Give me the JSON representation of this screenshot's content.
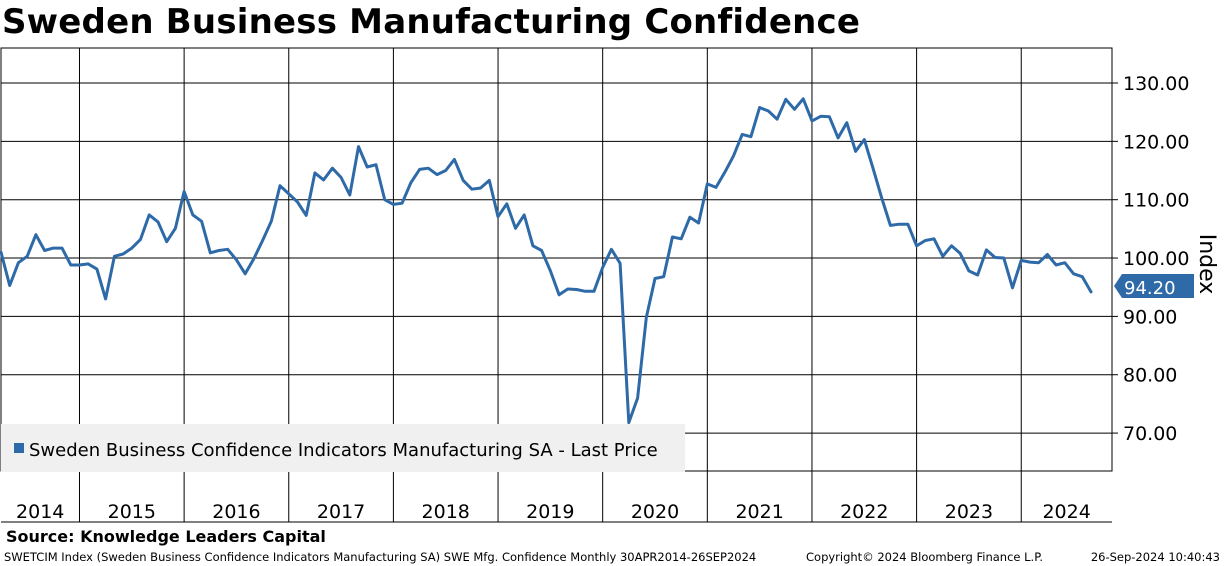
{
  "title": "Sweden Business Manufacturing Confidence",
  "source": "Source: Knowledge Leaders Capital",
  "footer": {
    "description": "SWETCIM Index (Sweden Business Confidence Indicators Manufacturing SA) SWE Mfg. Confidence  Monthly 30APR2014-26SEP2024",
    "copyright": "Copyright© 2024 Bloomberg Finance L.P.",
    "timestamp": "26-Sep-2024 10:40:43"
  },
  "colors": {
    "line": "#2e6aa8",
    "grid": "#000000",
    "legend_bg": "#f0f0f0"
  },
  "chart_data": {
    "type": "line",
    "title": "Sweden Business Manufacturing Confidence",
    "ylabel": "Index",
    "ylim": [
      63.5,
      136
    ],
    "yticks": [
      70,
      80,
      90,
      100,
      110,
      120,
      130
    ],
    "ytick_labels": [
      "70.00",
      "80.00",
      "90.00",
      "100.00",
      "110.00",
      "120.00",
      "130.00"
    ],
    "years": [
      "2014",
      "2015",
      "2016",
      "2017",
      "2018",
      "2019",
      "2020",
      "2021",
      "2022",
      "2023",
      "2024"
    ],
    "start": {
      "year": 2014,
      "month": 4
    },
    "legend": "Sweden Business Confidence Indicators Manufacturing SA - Last Price",
    "last_value_label": "94.20",
    "series": [
      {
        "name": "Sweden Business Confidence Indicators Manufacturing SA - Last Price",
        "values": [
          101.0,
          95.3,
          99.2,
          100.3,
          104.0,
          101.3,
          101.7,
          101.7,
          98.8,
          98.8,
          99.0,
          98.1,
          93.0,
          100.3,
          100.7,
          101.7,
          103.2,
          107.4,
          106.2,
          102.8,
          105.1,
          111.4,
          107.4,
          106.3,
          100.9,
          101.3,
          101.5,
          99.7,
          97.3,
          99.9,
          103.0,
          106.3,
          112.4,
          111.0,
          109.6,
          107.3,
          114.6,
          113.4,
          115.4,
          113.8,
          110.8,
          119.1,
          115.6,
          116.0,
          110.0,
          109.2,
          109.4,
          112.9,
          115.2,
          115.4,
          114.3,
          115.0,
          116.9,
          113.3,
          111.8,
          112.0,
          113.3,
          107.1,
          109.3,
          105.1,
          107.4,
          102.1,
          101.3,
          97.8,
          93.7,
          94.7,
          94.6,
          94.3,
          94.3,
          98.4,
          101.5,
          99.1,
          71.8,
          76.0,
          89.8,
          96.5,
          96.8,
          103.6,
          103.3,
          107.0,
          106.0,
          112.7,
          112.1,
          114.7,
          117.5,
          121.2,
          120.8,
          125.8,
          125.2,
          123.8,
          127.2,
          125.5,
          127.3,
          123.5,
          124.3,
          124.2,
          120.6,
          123.2,
          118.3,
          120.3,
          115.4,
          110.3,
          105.6,
          105.8,
          105.8,
          102.1,
          103.0,
          103.3,
          100.3,
          102.1,
          100.8,
          97.8,
          97.1,
          101.4,
          100.1,
          100.0,
          94.9,
          99.6,
          99.3,
          99.2,
          100.6,
          98.8,
          99.2,
          97.3,
          96.8,
          94.2
        ]
      }
    ]
  }
}
